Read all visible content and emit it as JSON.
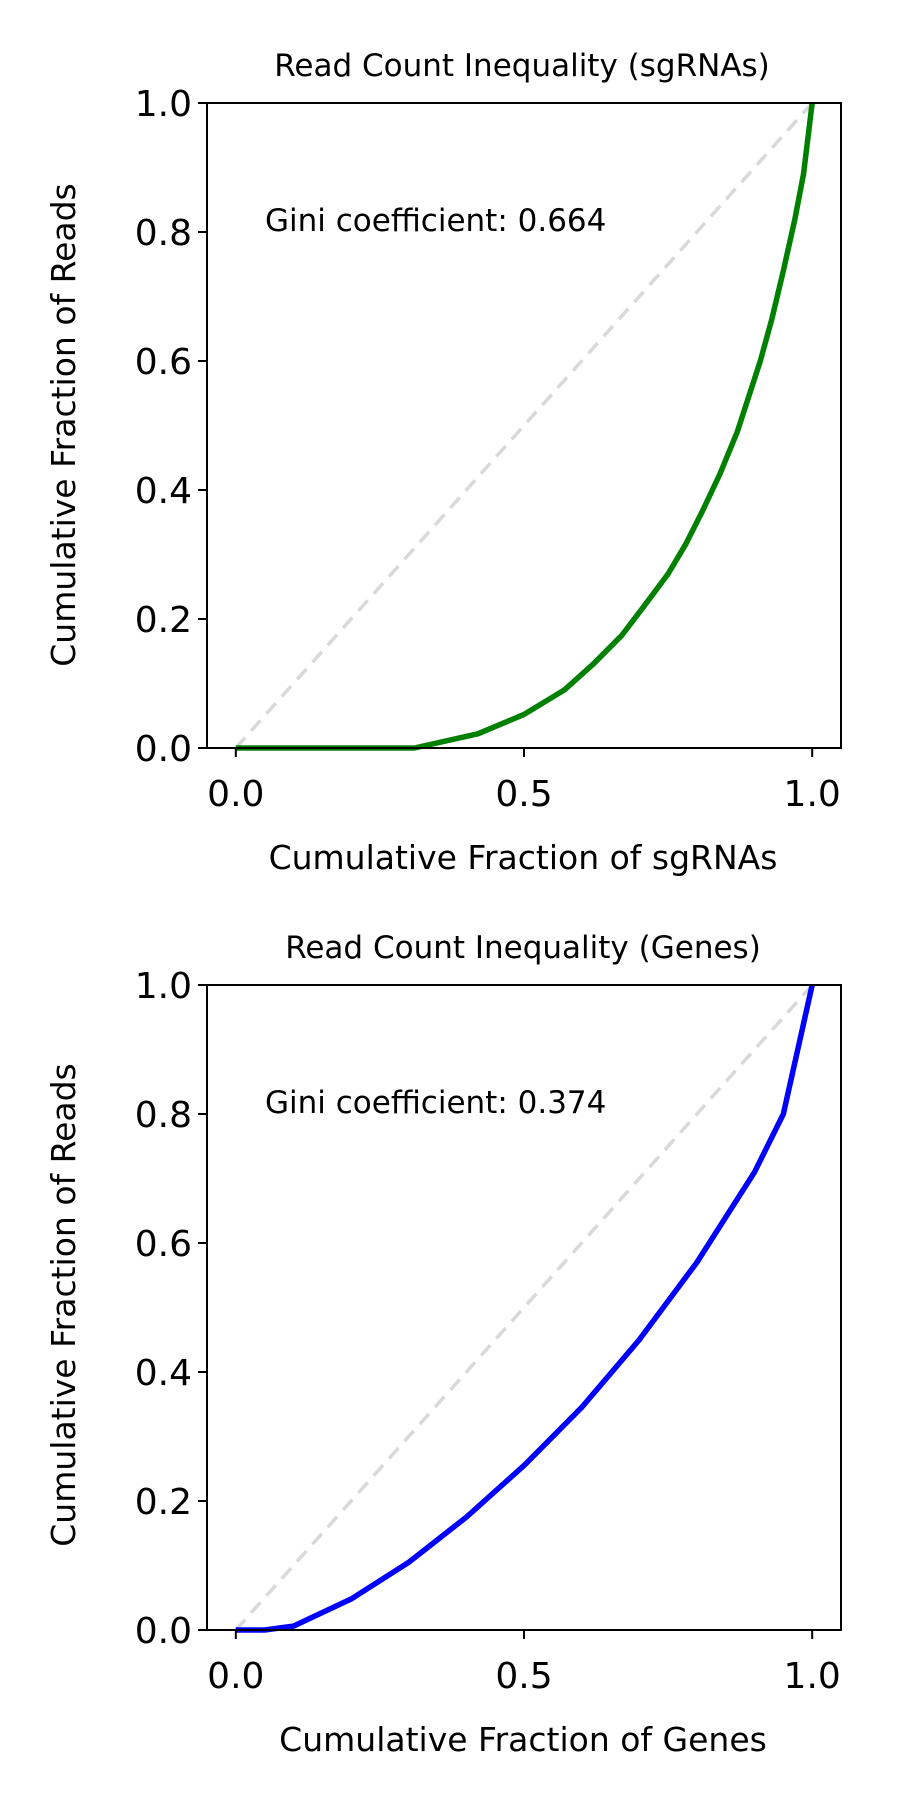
{
  "chart_data": [
    {
      "type": "line",
      "title": "Read Count Inequality (sgRNAs)",
      "xlabel": "Cumulative Fraction of sgRNAs",
      "ylabel": "Cumulative Fraction of Reads",
      "annotation": "Gini coefficient: 0.664",
      "xlim": [
        -0.05,
        1.05
      ],
      "ylim": [
        0.0,
        1.0
      ],
      "xticks": [
        0.0,
        0.5,
        1.0
      ],
      "xtick_labels": [
        "0.0",
        "0.5",
        "1.0"
      ],
      "yticks": [
        0.0,
        0.2,
        0.4,
        0.6,
        0.8,
        1.0
      ],
      "ytick_labels": [
        "0.0",
        "0.2",
        "0.4",
        "0.6",
        "0.8",
        "1.0"
      ],
      "grid": false,
      "reference_line": {
        "x": [
          0,
          1
        ],
        "y": [
          0,
          1
        ],
        "style": "dashed",
        "color": "#d9d9d9"
      },
      "series": [
        {
          "color": "#008000",
          "x": [
            0.0,
            0.1,
            0.2,
            0.31,
            0.42,
            0.5,
            0.57,
            0.62,
            0.67,
            0.71,
            0.75,
            0.78,
            0.81,
            0.84,
            0.87,
            0.89,
            0.91,
            0.93,
            0.95,
            0.97,
            0.985,
            1.0
          ],
          "y": [
            0.0,
            0.0,
            0.0,
            0.0,
            0.022,
            0.052,
            0.09,
            0.13,
            0.175,
            0.222,
            0.27,
            0.315,
            0.368,
            0.425,
            0.49,
            0.545,
            0.6,
            0.665,
            0.74,
            0.82,
            0.89,
            1.0
          ]
        }
      ]
    },
    {
      "type": "line",
      "title": "Read Count Inequality (Genes)",
      "xlabel": "Cumulative Fraction of Genes",
      "ylabel": "Cumulative Fraction of Reads",
      "annotation": "Gini coefficient: 0.374",
      "xlim": [
        -0.05,
        1.05
      ],
      "ylim": [
        0.0,
        1.0
      ],
      "xticks": [
        0.0,
        0.5,
        1.0
      ],
      "xtick_labels": [
        "0.0",
        "0.5",
        "1.0"
      ],
      "yticks": [
        0.0,
        0.2,
        0.4,
        0.6,
        0.8,
        1.0
      ],
      "ytick_labels": [
        "0.0",
        "0.2",
        "0.4",
        "0.6",
        "0.8",
        "1.0"
      ],
      "grid": false,
      "reference_line": {
        "x": [
          0,
          1
        ],
        "y": [
          0,
          1
        ],
        "style": "dashed",
        "color": "#d9d9d9"
      },
      "series": [
        {
          "color": "#0000ff",
          "x": [
            0.0,
            0.05,
            0.1,
            0.2,
            0.3,
            0.4,
            0.5,
            0.6,
            0.7,
            0.8,
            0.9,
            0.95,
            1.0
          ],
          "y": [
            0.0,
            0.0,
            0.006,
            0.048,
            0.105,
            0.175,
            0.255,
            0.345,
            0.45,
            0.57,
            0.71,
            0.8,
            1.0
          ]
        }
      ]
    }
  ]
}
